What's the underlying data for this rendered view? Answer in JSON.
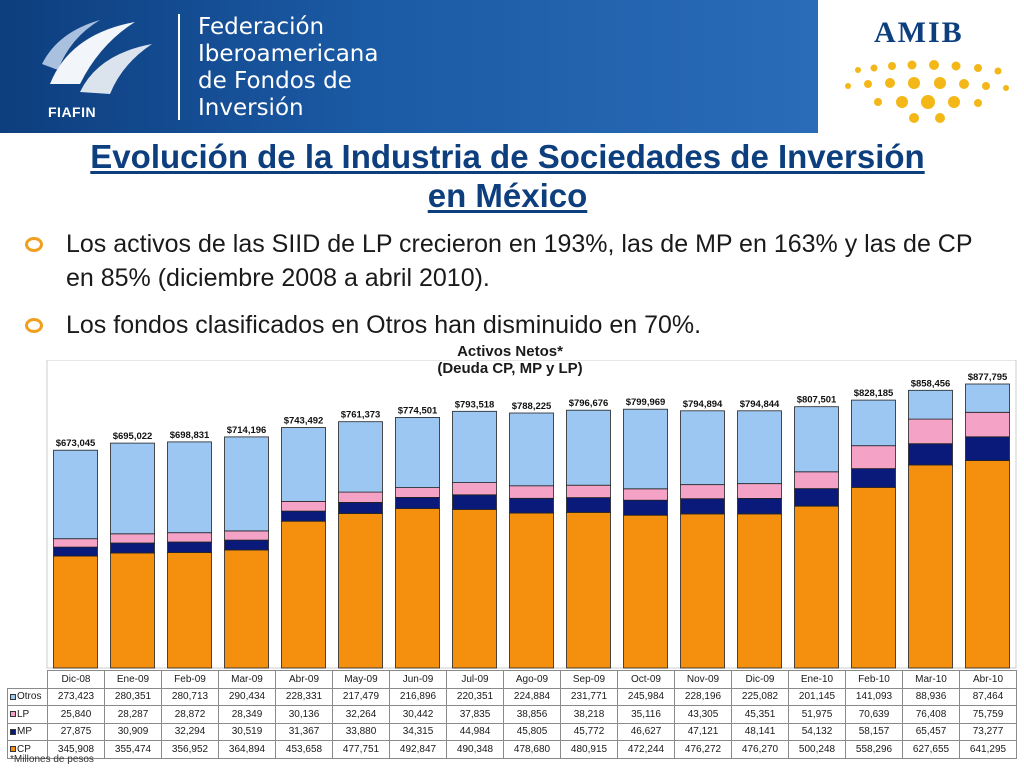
{
  "header": {
    "org_lines": [
      "Federación",
      "Iberoamericana",
      "de Fondos de",
      "Inversión"
    ],
    "fiafin_label": "FIAFIN",
    "amib_label": "AMIB"
  },
  "title": {
    "line1": "Evolución de la Industria de Sociedades de Inversión",
    "line2": "en México"
  },
  "bullets": [
    "Los activos de las SIID de LP crecieron en 193%, las de MP en 163% y las de CP en 85% (diciembre 2008 a abril 2010).",
    "Los fondos clasificados en Otros han disminuido en 70%."
  ],
  "colors": {
    "banner": "#1b5aa5",
    "title": "#0d3e7e",
    "cp": "#f5900f",
    "mp": "#0a1a7a",
    "lp": "#f4a3c6",
    "otros": "#9cc7f2"
  },
  "chart_data": {
    "type": "bar",
    "stacked": true,
    "title_line1": "Activos Netos*",
    "title_line2": "(Deuda CP, MP y LP)",
    "categories": [
      "Dic-08",
      "Ene-09",
      "Feb-09",
      "Mar-09",
      "Abr-09",
      "May-09",
      "Jun-09",
      "Jul-09",
      "Ago-09",
      "Sep-09",
      "Oct-09",
      "Nov-09",
      "Dic-09",
      "Ene-10",
      "Feb-10",
      "Mar-10",
      "Abr-10"
    ],
    "totals": [
      "$673,045",
      "$695,022",
      "$698,831",
      "$714,196",
      "$743,492",
      "$761,373",
      "$774,501",
      "$793,518",
      "$788,225",
      "$796,676",
      "$799,969",
      "$794,894",
      "$794,844",
      "$807,501",
      "$828,185",
      "$858,456",
      "$877,795"
    ],
    "series": [
      {
        "name": "CP",
        "values": [
          345908,
          355474,
          356952,
          364894,
          453658,
          477751,
          492847,
          490348,
          478680,
          480915,
          472244,
          476272,
          476270,
          500248,
          558296,
          627655,
          641295
        ]
      },
      {
        "name": "MP",
        "values": [
          27875,
          30909,
          32294,
          30519,
          31367,
          33880,
          34315,
          44984,
          45805,
          45772,
          46627,
          47121,
          48141,
          54132,
          58157,
          65457,
          73277
        ]
      },
      {
        "name": "LP",
        "values": [
          25840,
          28287,
          28872,
          28349,
          30136,
          32264,
          30442,
          37835,
          38856,
          38218,
          35116,
          43305,
          45351,
          51975,
          70639,
          76408,
          75759
        ]
      },
      {
        "name": "Otros",
        "values": [
          273423,
          280351,
          280713,
          290434,
          228331,
          217479,
          216896,
          220351,
          224884,
          231771,
          245984,
          228196,
          225082,
          201145,
          141093,
          88936,
          87464
        ]
      }
    ],
    "table_rows": [
      {
        "label": "Otros",
        "values": [
          "273,423",
          "280,351",
          "280,713",
          "290,434",
          "228,331",
          "217,479",
          "216,896",
          "220,351",
          "224,884",
          "231,771",
          "245,984",
          "228,196",
          "225,082",
          "201,145",
          "141,093",
          "88,936",
          "87,464"
        ]
      },
      {
        "label": "LP",
        "values": [
          "25,840",
          "28,287",
          "28,872",
          "28,349",
          "30,136",
          "32,264",
          "30,442",
          "37,835",
          "38,856",
          "38,218",
          "35,116",
          "43,305",
          "45,351",
          "51,975",
          "70,639",
          "76,408",
          "75,759"
        ]
      },
      {
        "label": "MP",
        "values": [
          "27,875",
          "30,909",
          "32,294",
          "30,519",
          "31,367",
          "33,880",
          "34,315",
          "44,984",
          "45,805",
          "45,772",
          "46,627",
          "47,121",
          "48,141",
          "54,132",
          "58,157",
          "65,457",
          "73,277"
        ]
      },
      {
        "label": "CP",
        "values": [
          "345,908",
          "355,474",
          "356,952",
          "364,894",
          "453,658",
          "477,751",
          "492,847",
          "490,348",
          "478,680",
          "480,915",
          "472,244",
          "476,272",
          "476,270",
          "500,248",
          "558,296",
          "627,655",
          "641,295"
        ]
      }
    ],
    "ylim": [
      0,
      877795
    ],
    "footnote": "*Millones de pesos"
  }
}
